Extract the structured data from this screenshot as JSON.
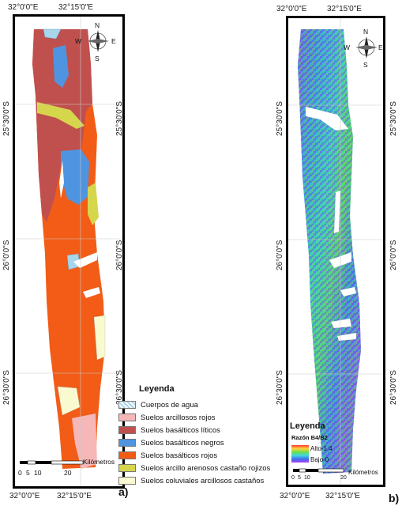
{
  "panel_a": {
    "letter": "a)",
    "top_ticks": [
      "32°0'0\"E",
      "32°15'0\"E"
    ],
    "bottom_ticks": [
      "32°0'0\"E",
      "32°15'0\"E"
    ],
    "left_ticks": [
      "25°30'0\"S",
      "26°0'0\"S",
      "26°30'0\"S"
    ],
    "right_ticks": [
      "25°30'0\"S",
      "26°0'0\"S",
      "26°30'0\"S"
    ],
    "compass": {
      "n": "N",
      "s": "S",
      "e": "E",
      "w": "W"
    },
    "legend": {
      "title": "Leyenda",
      "items": [
        {
          "label": "Cuerpos de agua",
          "color": "#a8d4ec"
        },
        {
          "label": "Suelos  arcillosos rojos",
          "color": "#f5b7b8"
        },
        {
          "label": "Suelos basálticos líticos",
          "color": "#c0504d"
        },
        {
          "label": "Suelos basálticos negros",
          "color": "#4f94e0"
        },
        {
          "label": "Suelos basálticos rojos",
          "color": "#f25c16"
        },
        {
          "label": "Suelos arcillo arenosos castaño rojizos",
          "color": "#d6d64c"
        },
        {
          "label": "Suelos coluviales arcillosos castaños",
          "color": "#fafad0"
        }
      ]
    },
    "scale": {
      "ticks": [
        "0",
        "5",
        "10",
        "20"
      ],
      "unit": "Kilómetros"
    }
  },
  "panel_b": {
    "letter": "b)",
    "top_ticks": [
      "32°0'0\"E",
      "32°15'0\"E"
    ],
    "bottom_ticks": [
      "32°0'0\"E",
      "32°15'0\"E"
    ],
    "left_ticks": [
      "25°30'0\"S",
      "26°0'0\"S",
      "26°30'0\"S"
    ],
    "right_ticks": [
      "25°30'0\"S",
      "26°0'0\"S",
      "26°30'0\"S"
    ],
    "compass": {
      "n": "N",
      "s": "S",
      "e": "E",
      "w": "W"
    },
    "legend": {
      "title": "Leyenda",
      "subtitle": "Razón B4/B2",
      "high": "Alto-1.4",
      "low": "Bajo-0"
    },
    "scale": {
      "ticks": [
        "0",
        "5",
        "10",
        "20"
      ],
      "unit": "Kilómetros"
    }
  }
}
